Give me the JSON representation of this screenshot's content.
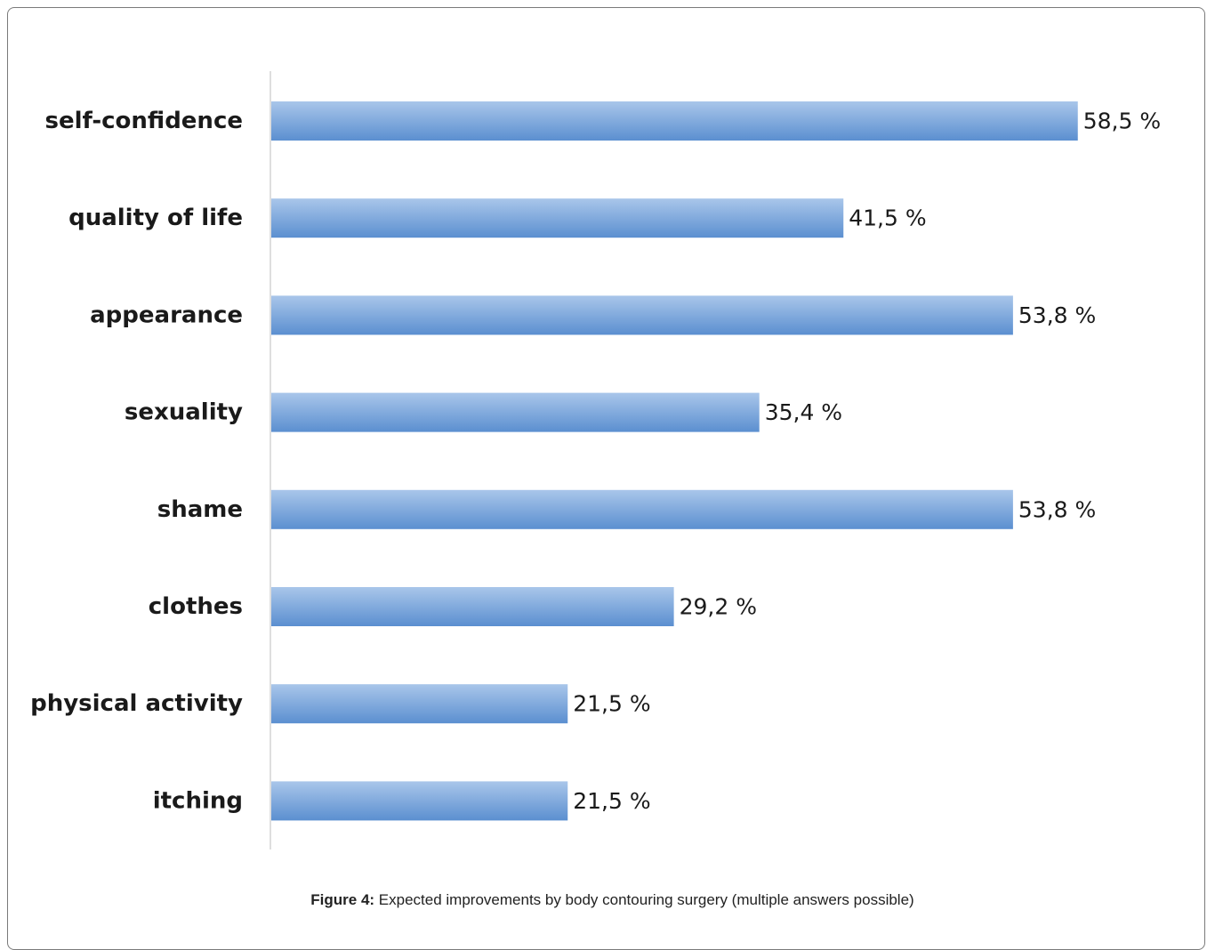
{
  "chart_data": {
    "type": "bar",
    "orientation": "horizontal",
    "categories": [
      "self-confidence",
      "quality of life",
      "appearance",
      "sexuality",
      "shame",
      "clothes",
      "physical activity",
      "itching"
    ],
    "values": [
      58.5,
      41.5,
      53.8,
      35.4,
      53.8,
      29.2,
      21.5,
      21.5
    ],
    "value_labels": [
      "58,5 %",
      "41,5 %",
      "53,8 %",
      "35,4 %",
      "53,8 %",
      "29,2 %",
      "21,5 %",
      "21,5 %"
    ],
    "xlim": [
      0,
      60
    ],
    "grid": false,
    "legend": "none",
    "bar_color": "#5b8fd0",
    "bar_color_light": "#a9c6ea"
  },
  "caption": {
    "label": "Figure 4:",
    "text": " Expected improvements by body contouring surgery (multiple answers possible)"
  }
}
